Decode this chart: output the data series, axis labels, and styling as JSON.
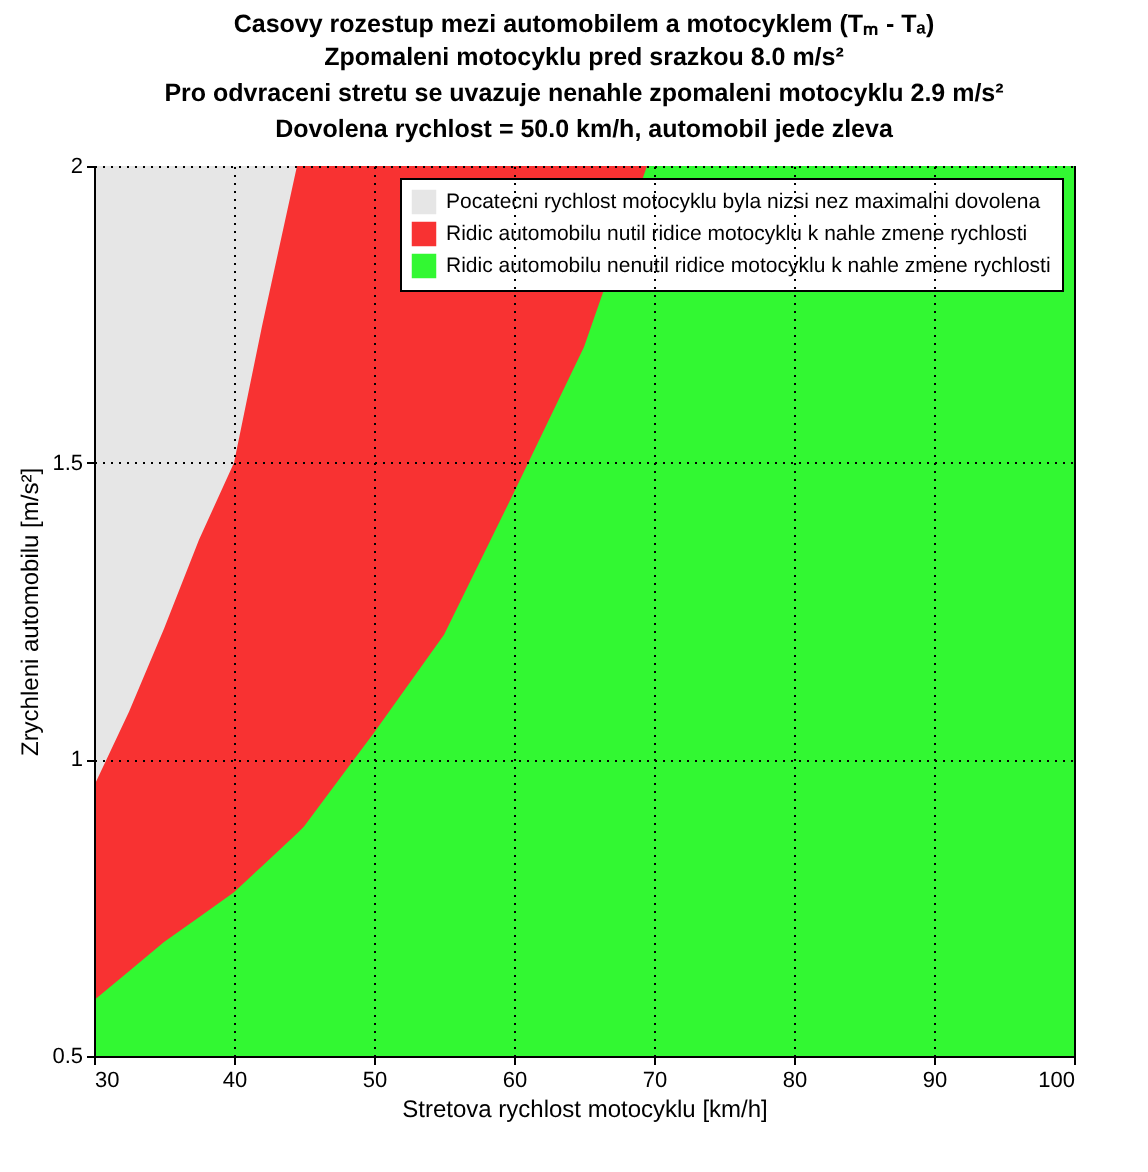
{
  "chart_data": {
    "type": "area",
    "title": "Casovy rozestup mezi automobilem a motocyklem (Tₘ - Tₐ)",
    "subtitle": "Zpomaleni motocyklu pred srazkou 8.0 m/s²\nPro odvraceni stretu se uvazuje nenahle zpomaleni motocyklu 2.9 m/s²\nDovolena rychlost = 50.0 km/h, automobil jede zleva",
    "xlabel": "Stretova rychlost motocyklu [km/h]",
    "ylabel": "Zrychleni automobilu [m/s²]",
    "x": [
      30,
      32.5,
      35,
      37.5,
      40,
      42,
      44.5,
      45,
      50,
      55,
      60,
      65,
      69.5,
      100
    ],
    "series": [
      {
        "name": "Pocatecni rychlost motocyklu byla nizsi nez maximalni dovolena",
        "color": "#e6e6e6",
        "values": [
          2.0,
          2.0,
          2.0,
          2.0,
          2.0,
          2.0,
          2.0,
          null,
          null,
          null,
          null,
          null,
          null,
          null
        ]
      },
      {
        "name": "Ridic automobilu nutil ridice motocyklu k nahle zmene rychlosti",
        "color": "#f83232",
        "values": [
          0.955,
          1.08,
          1.22,
          1.37,
          1.5,
          1.73,
          2.0,
          2.0,
          2.0,
          2.0,
          2.0,
          2.0,
          2.0,
          null
        ]
      },
      {
        "name": "Ridic automobilu nenutil ridice motocyklu k nahle zmene rychlosti",
        "color": "#32f832",
        "values": [
          0.594,
          0.643,
          0.692,
          0.734,
          0.776,
          0.82,
          0.875,
          0.887,
          1.045,
          1.21,
          1.45,
          1.695,
          2.0,
          2.0
        ]
      }
    ],
    "xlim": [
      30,
      100
    ],
    "xticks": [
      30,
      40,
      50,
      60,
      70,
      80,
      90,
      100
    ],
    "ylim": [
      0.5,
      2
    ],
    "yticks": [
      0.5,
      1,
      1.5,
      2
    ],
    "grid": true,
    "legend": "top right"
  }
}
